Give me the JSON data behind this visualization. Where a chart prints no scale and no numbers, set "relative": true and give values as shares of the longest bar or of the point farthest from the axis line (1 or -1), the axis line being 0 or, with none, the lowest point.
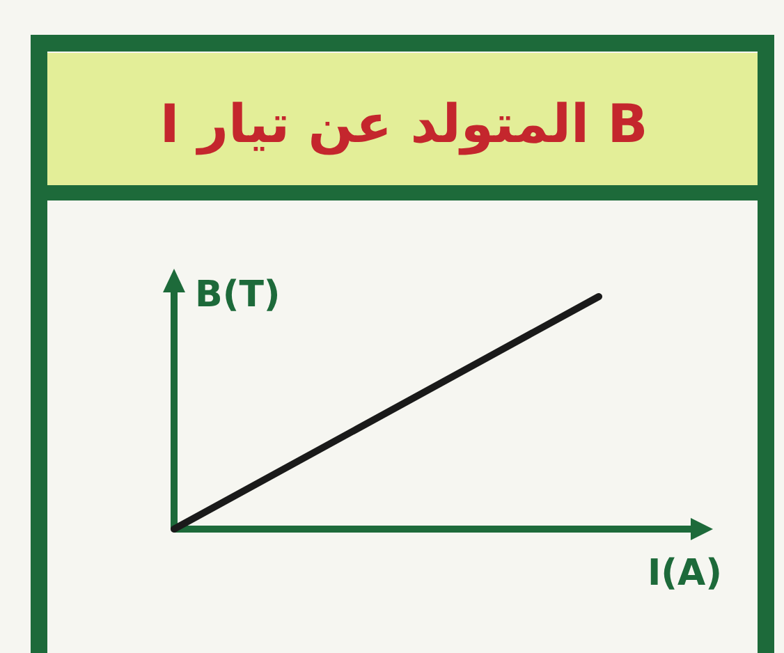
{
  "chart_data": {
    "type": "line",
    "title": "B المتولد عن تيار I",
    "xlabel": "I(A)",
    "ylabel": "B(T)",
    "categories": [
      null,
      null
    ],
    "relative": true,
    "series": [
      {
        "color": "#1a1a1a",
        "values": [
          0,
          1
        ]
      }
    ]
  }
}
